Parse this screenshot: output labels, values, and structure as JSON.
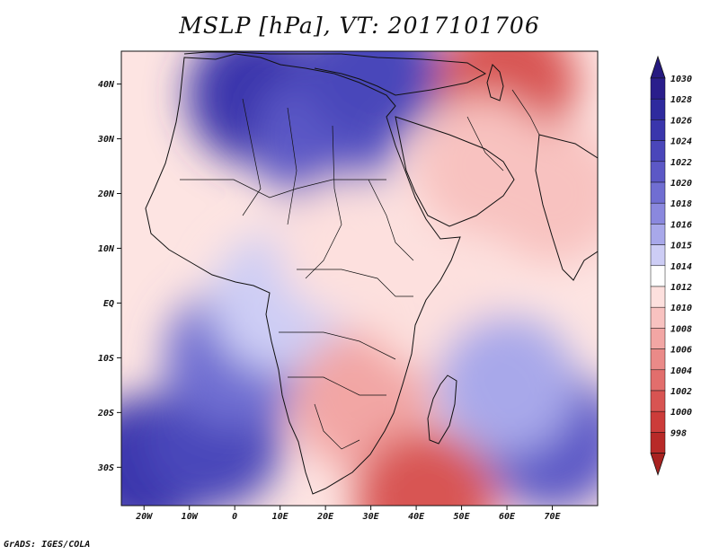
{
  "title": "MSLP [hPa], VT: 2017101706",
  "credit": "GrADS: IGES/COLA",
  "map": {
    "extent": {
      "lon_min": -25,
      "lon_max": 80,
      "lat_min": -37,
      "lat_max": 46
    },
    "lat_ticks": [
      {
        "lat": 40,
        "label": "40N"
      },
      {
        "lat": 30,
        "label": "30N"
      },
      {
        "lat": 20,
        "label": "20N"
      },
      {
        "lat": 10,
        "label": "10N"
      },
      {
        "lat": 0,
        "label": "EQ"
      },
      {
        "lat": -10,
        "label": "10S"
      },
      {
        "lat": -20,
        "label": "20S"
      },
      {
        "lat": -30,
        "label": "30S"
      }
    ],
    "lon_ticks": [
      {
        "lon": -20,
        "label": "20W"
      },
      {
        "lon": -10,
        "label": "10W"
      },
      {
        "lon": 0,
        "label": "0"
      },
      {
        "lon": 10,
        "label": "10E"
      },
      {
        "lon": 20,
        "label": "20E"
      },
      {
        "lon": 30,
        "label": "30E"
      },
      {
        "lon": 40,
        "label": "40E"
      },
      {
        "lon": 50,
        "label": "50E"
      },
      {
        "lon": 60,
        "label": "60E"
      },
      {
        "lon": 70,
        "label": "70E"
      }
    ]
  },
  "colorbar": {
    "levels": [
      {
        "label": "1030",
        "color": "#2a1e8c"
      },
      {
        "label": "1028",
        "color": "#2e2a9e"
      },
      {
        "label": "1026",
        "color": "#3a36ac"
      },
      {
        "label": "1024",
        "color": "#4a46ba"
      },
      {
        "label": "1022",
        "color": "#5c58c6"
      },
      {
        "label": "1020",
        "color": "#706ed2"
      },
      {
        "label": "1018",
        "color": "#8a88de"
      },
      {
        "label": "1016",
        "color": "#a8a8ea"
      },
      {
        "label": "1015",
        "color": "#cdcdf5"
      },
      {
        "label": "1014",
        "color": "#ffffff"
      },
      {
        "label": "1012",
        "color": "#fde0de"
      },
      {
        "label": "1010",
        "color": "#f8c2c0"
      },
      {
        "label": "1008",
        "color": "#f2a6a4"
      },
      {
        "label": "1006",
        "color": "#ea8a88"
      },
      {
        "label": "1004",
        "color": "#e26e6c"
      },
      {
        "label": "1002",
        "color": "#d85452"
      },
      {
        "label": "1000",
        "color": "#cc3c3a"
      },
      {
        "label": "998",
        "color": "#b82a28"
      }
    ],
    "top_color": "#261a80",
    "bottom_color": "#a82220"
  },
  "pressure_field": [
    {
      "lon": -20,
      "lat": -30,
      "value": 1026
    },
    {
      "lon": -5,
      "lat": -25,
      "value": 1024
    },
    {
      "lon": 0,
      "lat": -10,
      "value": 1020
    },
    {
      "lon": 10,
      "lat": 0,
      "value": 1015
    },
    {
      "lon": 5,
      "lat": 38,
      "value": 1026
    },
    {
      "lon": 20,
      "lat": 30,
      "value": 1022
    },
    {
      "lon": 30,
      "lat": 42,
      "value": 1024
    },
    {
      "lon": 25,
      "lat": 10,
      "value": 1012
    },
    {
      "lon": 28,
      "lat": -18,
      "value": 1008
    },
    {
      "lon": 60,
      "lat": 40,
      "value": 1002
    },
    {
      "lon": 55,
      "lat": 25,
      "value": 1010
    },
    {
      "lon": 70,
      "lat": 20,
      "value": 1010
    },
    {
      "lon": 45,
      "lat": 0,
      "value": 1012
    },
    {
      "lon": 42,
      "lat": -36,
      "value": 1002
    },
    {
      "lon": 70,
      "lat": -25,
      "value": 1022
    },
    {
      "lon": 60,
      "lat": -15,
      "value": 1016
    }
  ]
}
